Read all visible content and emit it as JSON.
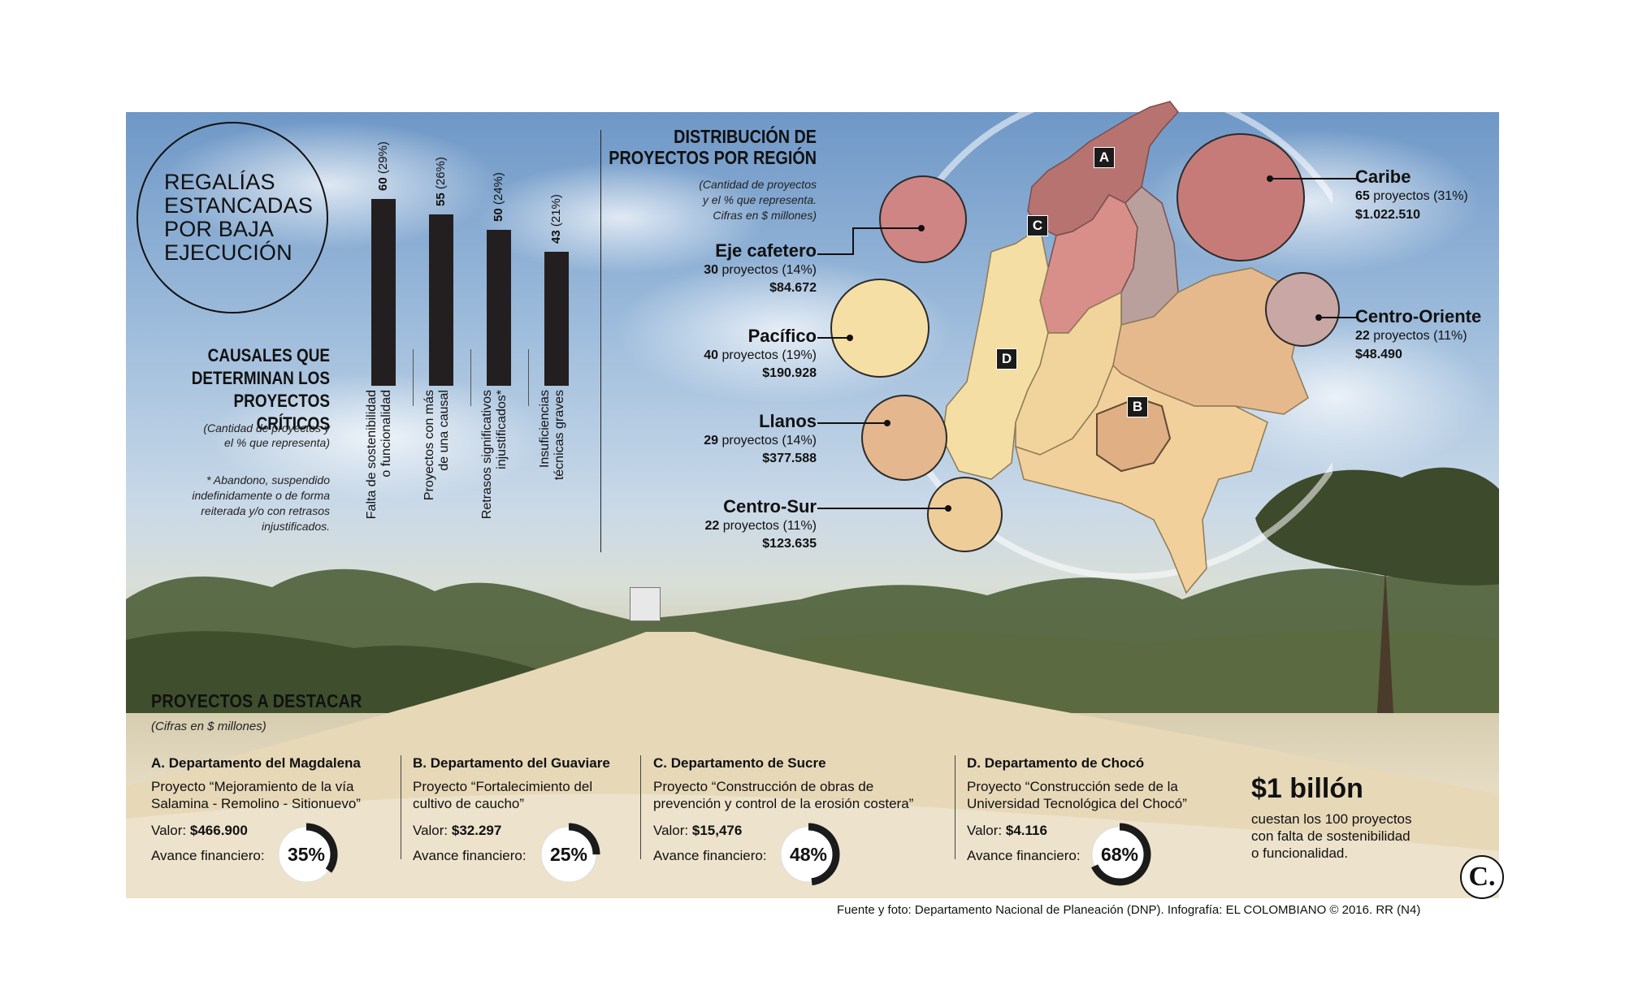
{
  "title": "REGALÍAS ESTANCADAS POR BAJA EJECUCIÓN",
  "causales": {
    "heading": "CAUSALES QUE DETERMINAN LOS PROYECTOS CRÍTICOS",
    "heading_lines": [
      "CAUSALES QUE",
      "DETERMINAN LOS",
      "PROYECTOS CRÍTICOS"
    ],
    "note_lines": [
      "(Cantidad de proyectos y",
      "el % que representa)"
    ],
    "footnote_lines": [
      "* Abandono, suspendido",
      "indefinidamente o de forma",
      "reiterada y/o con retrasos",
      "injustificados."
    ]
  },
  "regiones": {
    "heading_lines": [
      "DISTRIBUCIÓN DE",
      "PROYECTOS POR REGIÓN"
    ],
    "note_lines": [
      "(Cantidad de proyectos",
      "y el % que representa.",
      "Cifras en $ millones)"
    ],
    "items": [
      {
        "name": "Eje cafetero",
        "count": "30",
        "label": "proyectos (14%)",
        "value": "$84.672",
        "color": "#cf8583"
      },
      {
        "name": "Pacífico",
        "count": "40",
        "label": "proyectos (19%)",
        "value": "$190.928",
        "color": "#f6dfa5"
      },
      {
        "name": "Llanos",
        "count": "29",
        "label": "proyectos (14%)",
        "value": "$377.588",
        "color": "#e4b78f"
      },
      {
        "name": "Centro-Sur",
        "count": "22",
        "label": "proyectos (11%)",
        "value": "$123.635",
        "color": "#efcd99"
      },
      {
        "name": "Caribe",
        "count": "65",
        "label": "proyectos (31%)",
        "value": "$1.022.510",
        "color": "#c77b78"
      },
      {
        "name": "Centro-Oriente",
        "count": "22",
        "label": "proyectos (11%)",
        "value": "$48.490",
        "color": "#c8a7a4"
      }
    ],
    "map_markers": [
      "A",
      "B",
      "C",
      "D"
    ]
  },
  "chart_data": {
    "type": "bar",
    "title": "CAUSALES QUE DETERMINAN LOS PROYECTOS CRÍTICOS",
    "categories": [
      "Falta de sostenibilidad o funcionalidad",
      "Proyectos con más de una causal",
      "Retrasos significativos injustificados*",
      "Insuficiencias técnicas graves"
    ],
    "category_lines": [
      [
        "Falta de sostenibilidad",
        "o funcionalidad"
      ],
      [
        "Proyectos con más",
        "de una causal"
      ],
      [
        "Retrasos significativos",
        "injustificados*"
      ],
      [
        "Insuficiencias",
        "técnicas graves"
      ]
    ],
    "values": [
      60,
      55,
      50,
      43
    ],
    "value_labels": [
      "60",
      "55",
      "50",
      "43"
    ],
    "percent_labels": [
      "(29%)",
      "(26%)",
      "(24%)",
      "(21%)"
    ],
    "ylim": [
      0,
      60
    ],
    "bar_color": "#231f20"
  },
  "destacados": {
    "heading": "PROYECTOS A DESTACAR",
    "note": "(Cifras en $ millones)",
    "items": [
      {
        "title": "A. Departamento del Magdalena",
        "line1": "Proyecto “Mejoramiento de la vía",
        "line2": "Salamina - Remolino - Sitionuevo”",
        "valor_label": "Valor:",
        "valor": "$466.900",
        "avance_label": "Avance financiero:",
        "avance": "35%",
        "avance_value": 35
      },
      {
        "title": "B. Departamento del Guaviare",
        "line1": "Proyecto “Fortalecimiento del",
        "line2": "cultivo de caucho”",
        "valor_label": "Valor:",
        "valor": "$32.297",
        "avance_label": "Avance financiero:",
        "avance": "25%",
        "avance_value": 25
      },
      {
        "title": "C. Departamento de Sucre",
        "line1": "Proyecto “Construcción de obras de",
        "line2": "prevención y control de la erosión costera”",
        "valor_label": "Valor:",
        "valor": "$15,476",
        "avance_label": "Avance financiero:",
        "avance": "48%",
        "avance_value": 48
      },
      {
        "title": "D. Departamento de Chocó",
        "line1": "Proyecto “Construcción sede de la",
        "line2": "Universidad Tecnológica del Chocó”",
        "valor_label": "Valor:",
        "valor": "$4.116",
        "avance_label": "Avance financiero:",
        "avance": "68%",
        "avance_value": 68
      }
    ]
  },
  "total": {
    "amount": "$1 billón",
    "lines": [
      "cuestan los 100 proyectos",
      "con falta de sostenibilidad",
      "o funcionalidad."
    ]
  },
  "footer": "Fuente y foto: Departamento Nacional de Planeación (DNP). Infografía: EL COLOMBIANO © 2016. RR (N4)",
  "logo": "C."
}
